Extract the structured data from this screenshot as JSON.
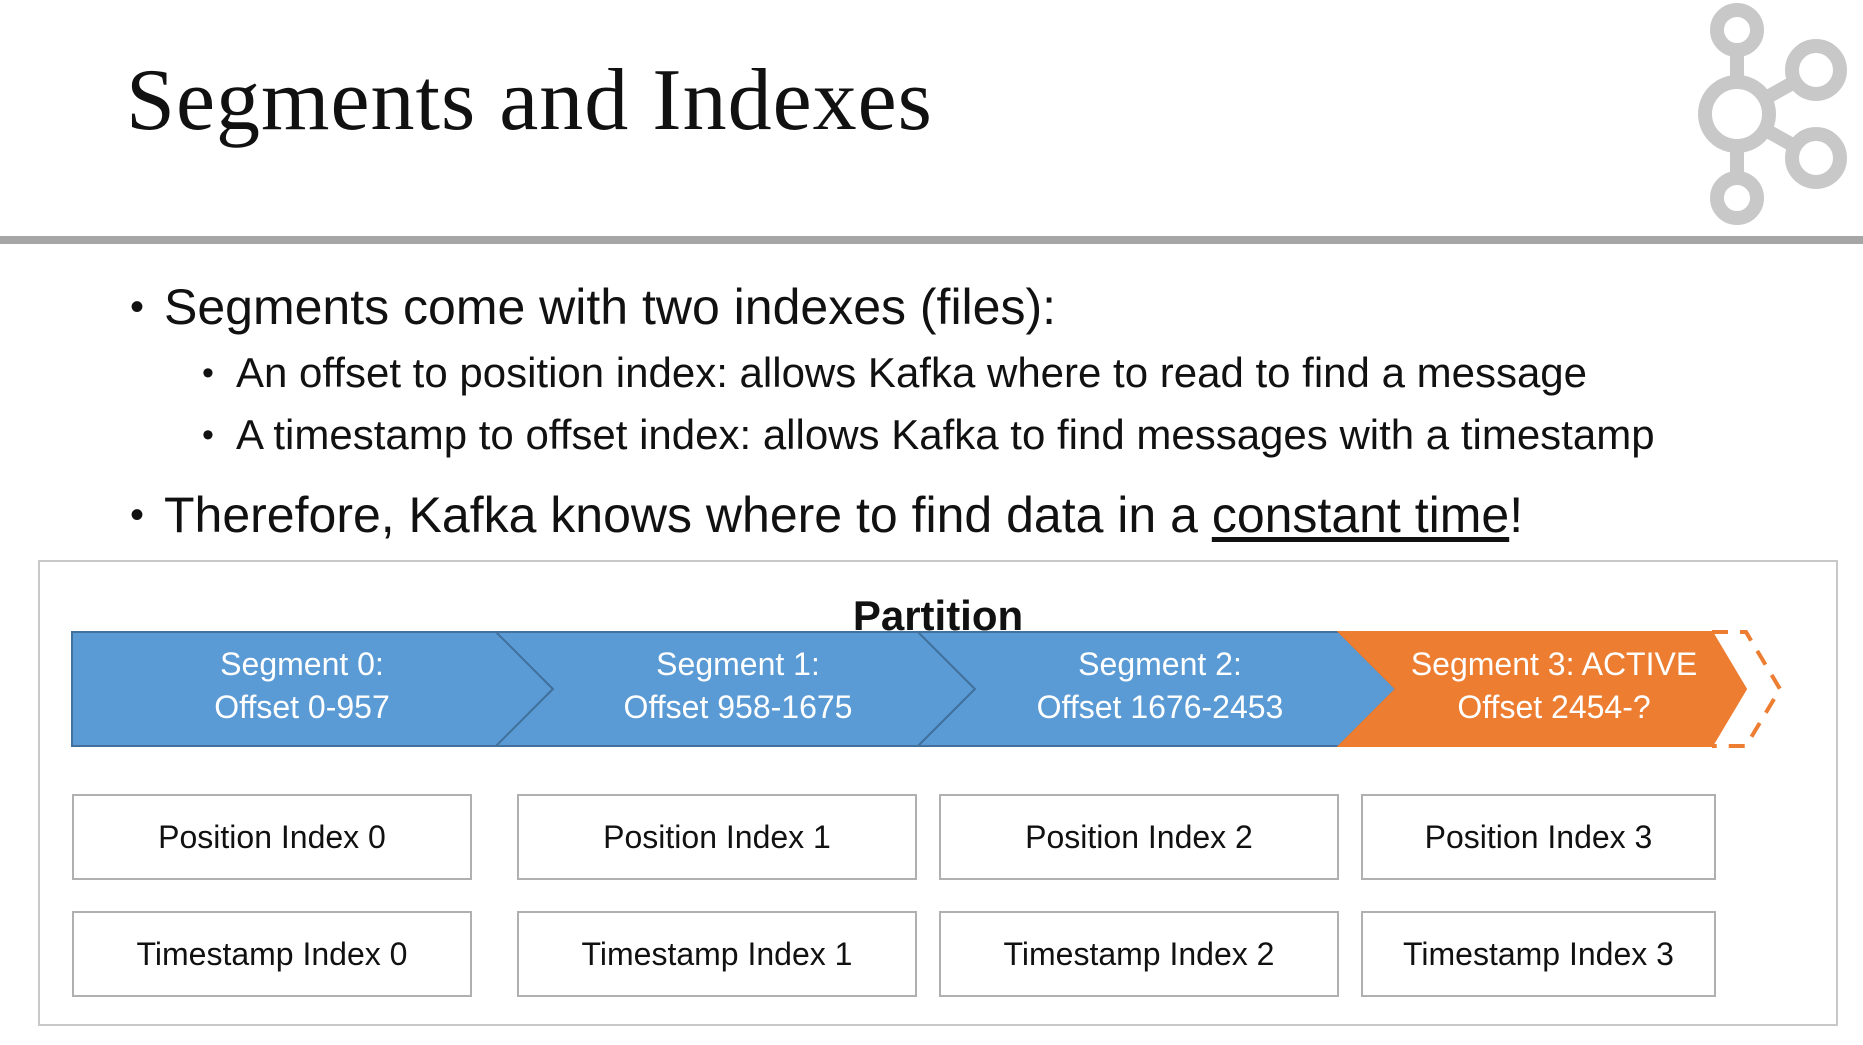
{
  "slide": {
    "title": "Segments and Indexes",
    "bullets": [
      {
        "text": "Segments come with two indexes (files):"
      },
      {
        "text": "An offset to position index: allows Kafka where to read to find a message"
      },
      {
        "text": "A timestamp to offset index: allows Kafka to find messages with a timestamp"
      },
      {
        "text_before": "Therefore, Kafka knows where to find data in a ",
        "underlined": "constant time",
        "text_after": "!"
      }
    ]
  },
  "logo": {
    "icon": "kafka-logo-icon",
    "color": "#c8c8c8"
  },
  "diagram": {
    "title": "Partition",
    "segments": [
      {
        "line1": "Segment 0:",
        "line2": "Offset 0-957",
        "color": "#5b9bd5"
      },
      {
        "line1": "Segment 1:",
        "line2": "Offset 958-1675",
        "color": "#5b9bd5"
      },
      {
        "line1": "Segment 2:",
        "line2": "Offset 1676-2453",
        "color": "#5b9bd5"
      },
      {
        "line1": "Segment 3: ACTIVE",
        "line2": "Offset 2454-?",
        "color": "#ed7d31"
      }
    ],
    "position_indexes": [
      "Position Index 0",
      "Position Index 1",
      "Position Index 2",
      "Position Index 3"
    ],
    "timestamp_indexes": [
      "Timestamp Index 0",
      "Timestamp Index 1",
      "Timestamp Index 2",
      "Timestamp Index 3"
    ]
  }
}
